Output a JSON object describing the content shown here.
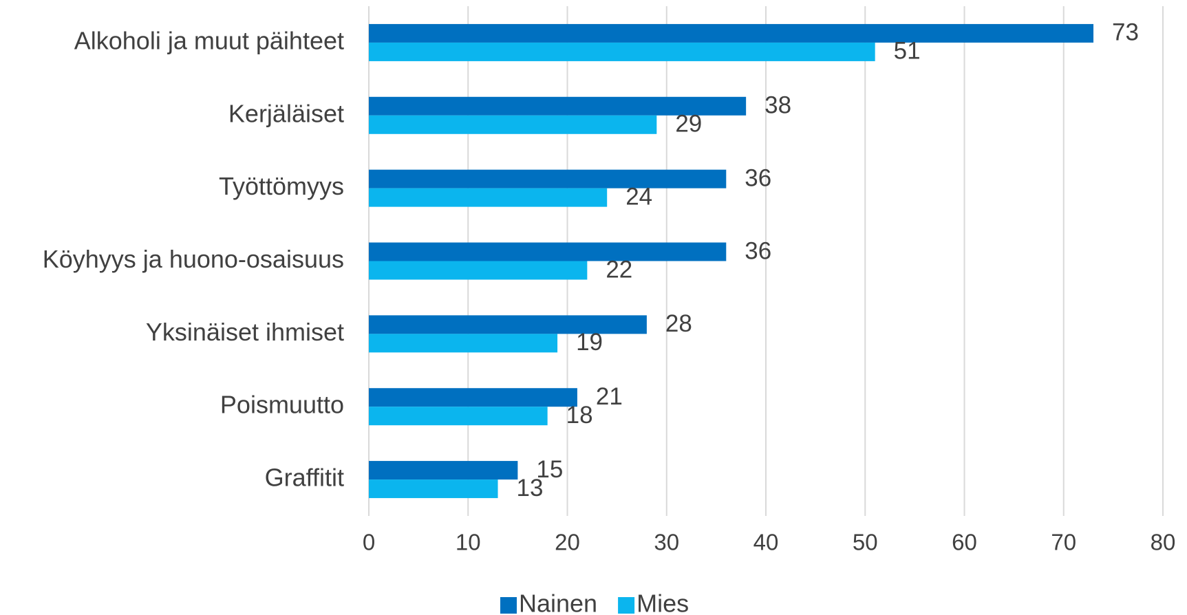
{
  "chart_data": {
    "type": "bar",
    "orientation": "horizontal",
    "categories": [
      "Alkoholi ja muut päihteet",
      "Kerjäläiset",
      "Työttömyys",
      "Köyhyys ja huono-osaisuus",
      "Yksinäiset ihmiset",
      "Poismuutto",
      "Graffitit"
    ],
    "series": [
      {
        "name": "Nainen",
        "color": "#0070c0",
        "values": [
          73,
          38,
          36,
          36,
          28,
          21,
          15
        ]
      },
      {
        "name": "Mies",
        "color": "#0bb5ee",
        "values": [
          51,
          29,
          24,
          22,
          19,
          18,
          13
        ]
      }
    ],
    "xlim": [
      0,
      80
    ],
    "xticks": [
      0,
      10,
      20,
      30,
      40,
      50,
      60,
      70,
      80
    ],
    "grid": true,
    "legend": "bottom"
  }
}
